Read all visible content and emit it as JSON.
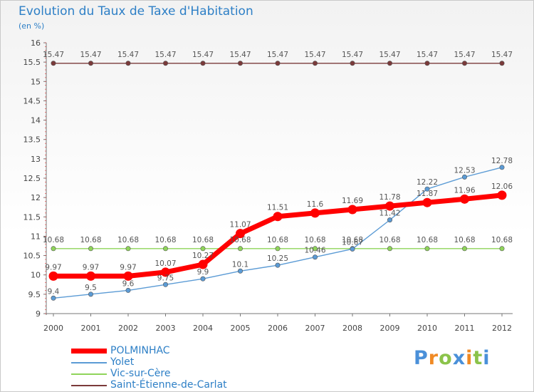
{
  "header": {
    "title": "Evolution du Taux de Taxe d'Habitation",
    "unit": "(en %)"
  },
  "chart_data": {
    "type": "line",
    "title": "Evolution du Taux de Taxe d'Habitation",
    "ylabel": "(en %)",
    "xlabel": "",
    "x": [
      "2000",
      "2001",
      "2002",
      "2003",
      "2004",
      "2005",
      "2006",
      "2007",
      "2008",
      "2009",
      "2010",
      "2011",
      "2012"
    ],
    "ylim": [
      9,
      16
    ],
    "yticks": [
      "9",
      "9.5",
      "10",
      "10.5",
      "11",
      "11.5",
      "12",
      "12.5",
      "13",
      "13.5",
      "14",
      "14.5",
      "15",
      "15.5",
      "16"
    ],
    "grid": false,
    "legend": "bottom-left",
    "series": [
      {
        "name": "POLMINHAC",
        "color": "#ff0000",
        "values": [
          9.97,
          9.97,
          9.97,
          10.07,
          10.27,
          11.07,
          11.51,
          11.6,
          11.69,
          11.78,
          11.87,
          11.96,
          12.06
        ],
        "labels": [
          "9.97",
          "9.97",
          "9.97",
          "10.07",
          "10.27",
          "11.07",
          "11.51",
          "11.6",
          "11.69",
          "11.78",
          "11.87",
          "11.96",
          "12.06"
        ]
      },
      {
        "name": "Yolet",
        "color": "#5b9bd5",
        "values": [
          9.4,
          9.5,
          9.6,
          9.75,
          9.9,
          10.1,
          10.25,
          10.46,
          10.67,
          11.42,
          12.22,
          12.53,
          12.78
        ],
        "labels": [
          "9.4",
          "9.5",
          "9.6",
          "9.75",
          "9.9",
          "10.1",
          "10.25",
          "10.46",
          "10.67",
          "11.42",
          "12.22",
          "12.53",
          "12.78"
        ]
      },
      {
        "name": "Vic-sur-Cère",
        "color": "#8fd45a",
        "values": [
          10.68,
          10.68,
          10.68,
          10.68,
          10.68,
          10.68,
          10.68,
          10.68,
          10.68,
          10.68,
          10.68,
          10.68,
          10.68
        ],
        "labels": [
          "10.68",
          "10.68",
          "10.68",
          "10.68",
          "10.68",
          "10.68",
          "10.68",
          "10.68",
          "10.68",
          "10.68",
          "10.68",
          "10.68",
          "10.68"
        ]
      },
      {
        "name": "Saint-Étienne-de-Carlat",
        "color": "#7b3a3a",
        "values": [
          15.47,
          15.47,
          15.47,
          15.47,
          15.47,
          15.47,
          15.47,
          15.47,
          15.47,
          15.47,
          15.47,
          15.47,
          15.47
        ],
        "labels": [
          "15.47",
          "15.47",
          "15.47",
          "15.47",
          "15.47",
          "15.47",
          "15.47",
          "15.47",
          "15.47",
          "15.47",
          "15.47",
          "15.47",
          "15.47"
        ]
      }
    ]
  },
  "logo": {
    "text": "Proxiti",
    "colors": [
      "#4a90d9",
      "#f08a24",
      "#8bc34a",
      "#4a90d9",
      "#f08a24",
      "#8bc34a",
      "#4a90d9"
    ]
  }
}
